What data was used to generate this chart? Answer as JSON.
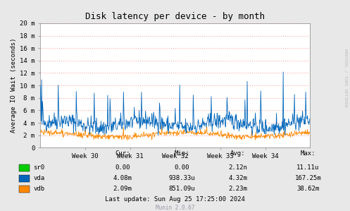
{
  "title": "Disk latency per device - by month",
  "ylabel": "Average IO Wait (seconds)",
  "background_color": "#e8e8e8",
  "plot_bg_color": "#ffffff",
  "grid_color": "#ffaaaa",
  "week_labels": [
    "Week 30",
    "Week 31",
    "Week 32",
    "Week 33",
    "Week 34"
  ],
  "ytick_labels": [
    "0",
    "2 m",
    "4 m",
    "6 m",
    "8 m",
    "10 m",
    "12 m",
    "14 m",
    "16 m",
    "18 m",
    "20 m"
  ],
  "ytick_values": [
    0,
    2,
    4,
    6,
    8,
    10,
    12,
    14,
    16,
    18,
    20
  ],
  "ymax": 20,
  "line_sr0_color": "#00cc00",
  "line_vda_color": "#0066bb",
  "line_vdb_color": "#ff8800",
  "legend_items": [
    {
      "label": "sr0",
      "color": "#00cc00"
    },
    {
      "label": "vda",
      "color": "#0066bb"
    },
    {
      "label": "vdb",
      "color": "#ff8800"
    }
  ],
  "stats": {
    "headers": [
      "Cur:",
      "Min:",
      "Avg:",
      "Max:"
    ],
    "rows": [
      [
        "sr0",
        "0.00",
        "0.00",
        "2.12n",
        "11.11u"
      ],
      [
        "vda",
        "4.08m",
        "938.33u",
        "4.32m",
        "167.25m"
      ],
      [
        "vdb",
        "2.09m",
        "851.09u",
        "2.23m",
        "38.62m"
      ]
    ]
  },
  "last_update": "Last update: Sun Aug 25 17:25:00 2024",
  "munin_version": "Munin 2.0.67",
  "rrdtool_label": "RRDTOOL / TOBI OETIKER",
  "num_points": 600,
  "seed": 42
}
